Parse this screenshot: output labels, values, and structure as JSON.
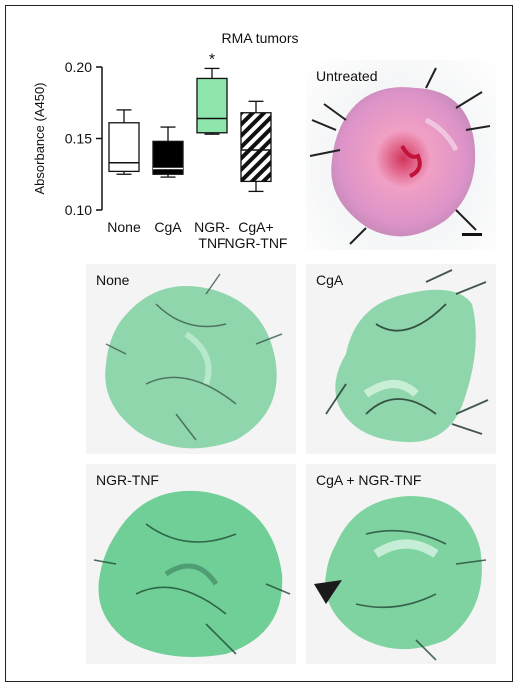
{
  "figure": {
    "title": "RMA tumors",
    "photos": [
      {
        "key": "untreated",
        "label": "Untreated",
        "color": "#e8a6c6"
      },
      {
        "key": "none",
        "label": "None",
        "color": "#8fd6ad"
      },
      {
        "key": "cga",
        "label": "CgA",
        "color": "#8fd6ad"
      },
      {
        "key": "ngr",
        "label": "NGR-TNF",
        "color": "#6fcf97"
      },
      {
        "key": "cgangr",
        "label": "CgA + NGR-TNF",
        "color": "#7fd3a0"
      }
    ]
  },
  "chart_data": {
    "type": "box",
    "ylabel": "Absorbance (A450)",
    "ylim": [
      0.1,
      0.2
    ],
    "yticks": [
      "0.10",
      "0.15",
      "0.20"
    ],
    "categories": [
      {
        "label_lines": [
          "None"
        ],
        "min": 0.125,
        "q1": 0.127,
        "median": 0.133,
        "q3": 0.161,
        "max": 0.17,
        "fill": "white",
        "significance": ""
      },
      {
        "label_lines": [
          "CgA"
        ],
        "min": 0.123,
        "q1": 0.125,
        "median": 0.129,
        "q3": 0.148,
        "max": 0.158,
        "fill": "black",
        "significance": ""
      },
      {
        "label_lines": [
          "NGR-",
          "TNF"
        ],
        "min": 0.153,
        "q1": 0.154,
        "median": 0.164,
        "q3": 0.192,
        "max": 0.199,
        "fill": "#8ee6ad",
        "significance": "*"
      },
      {
        "label_lines": [
          "CgA+",
          "NGR-TNF"
        ],
        "min": 0.113,
        "q1": 0.12,
        "median": 0.142,
        "q3": 0.168,
        "max": 0.176,
        "fill": "hatched",
        "significance": ""
      }
    ]
  }
}
